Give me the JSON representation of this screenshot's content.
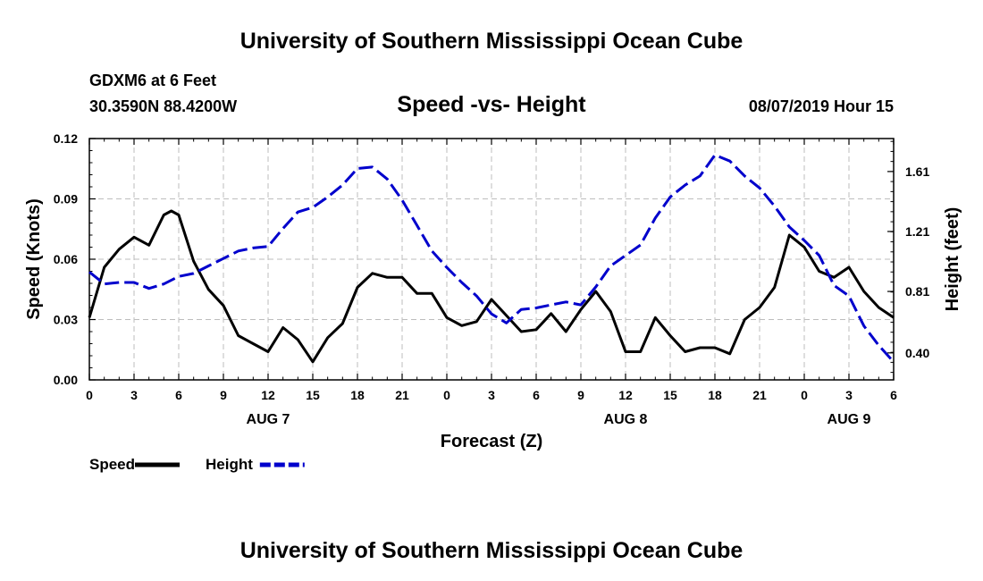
{
  "header": {
    "title_top": "University of Southern Mississippi Ocean Cube",
    "title_bottom": "University of Southern Mississippi Ocean Cube",
    "station": "GDXM6 at 6 Feet",
    "coords": "30.3590N 88.4200W",
    "datetime": "08/07/2019 Hour 15"
  },
  "colors": {
    "speed": "#000000",
    "height": "#0000cc",
    "grid": "#bdbdbd"
  },
  "chart_data": {
    "type": "line",
    "title": "Speed -vs- Height",
    "xlabel": "Forecast (Z)",
    "ylabel": "Speed (Knots)",
    "y2label": "Height (feet)",
    "xlim": [
      0,
      54
    ],
    "ylim": [
      0,
      0.12
    ],
    "y2lim": [
      0.22,
      1.83
    ],
    "x_ticks": [
      0,
      3,
      6,
      9,
      12,
      15,
      18,
      21,
      24,
      27,
      30,
      33,
      36,
      39,
      42,
      45,
      48,
      51,
      54
    ],
    "x_tick_labels": [
      "0",
      "3",
      "6",
      "9",
      "12",
      "15",
      "18",
      "21",
      "0",
      "3",
      "6",
      "9",
      "12",
      "15",
      "18",
      "21",
      "0",
      "3",
      "6"
    ],
    "y_tick_labels": [
      "0.00",
      "0.03",
      "0.06",
      "0.09",
      "0.12"
    ],
    "y_ticks": [
      0,
      0.03,
      0.06,
      0.09,
      0.12
    ],
    "y2_tick_labels": [
      "0.40",
      "0.81",
      "1.21",
      "1.61"
    ],
    "y2_ticks": [
      0.4,
      0.81,
      1.21,
      1.61
    ],
    "date_labels": [
      {
        "x": 12,
        "text": "AUG 7"
      },
      {
        "x": 36,
        "text": "AUG 8"
      },
      {
        "x": 51,
        "text": "AUG 9"
      }
    ],
    "series": [
      {
        "name": "Speed",
        "axis": "left",
        "x": [
          0,
          1,
          2,
          3,
          4,
          5,
          5.5,
          6,
          7,
          8,
          9,
          10,
          11,
          12,
          13,
          14,
          15,
          16,
          17,
          18,
          19,
          20,
          21,
          22,
          23,
          24,
          25,
          26,
          27,
          28,
          29,
          30,
          31,
          32,
          33,
          34,
          35,
          36,
          37,
          38,
          39,
          40,
          41,
          42,
          43,
          44,
          45,
          46,
          47,
          48,
          49,
          50,
          51,
          52,
          53,
          54
        ],
        "values": [
          0.031,
          0.056,
          0.065,
          0.071,
          0.067,
          0.082,
          0.084,
          0.082,
          0.059,
          0.045,
          0.037,
          0.022,
          0.018,
          0.014,
          0.026,
          0.02,
          0.009,
          0.021,
          0.028,
          0.046,
          0.053,
          0.051,
          0.051,
          0.043,
          0.043,
          0.031,
          0.027,
          0.029,
          0.04,
          0.032,
          0.024,
          0.025,
          0.033,
          0.024,
          0.035,
          0.044,
          0.034,
          0.014,
          0.014,
          0.031,
          0.022,
          0.014,
          0.016,
          0.016,
          0.013,
          0.03,
          0.036,
          0.046,
          0.072,
          0.066,
          0.054,
          0.051,
          0.056,
          0.044,
          0.036,
          0.031
        ]
      },
      {
        "name": "Height",
        "axis": "right",
        "x": [
          0,
          1,
          2,
          3,
          4,
          5,
          6,
          7,
          8,
          9,
          10,
          11,
          12,
          13,
          14,
          15,
          16,
          17,
          18,
          19,
          20,
          21,
          22,
          23,
          24,
          25,
          26,
          27,
          28,
          29,
          30,
          31,
          32,
          33,
          34,
          35,
          36,
          37,
          38,
          39,
          40,
          41,
          42,
          43,
          44,
          45,
          46,
          47,
          48,
          49,
          50,
          51,
          52,
          53,
          54
        ],
        "values": [
          0.94,
          0.86,
          0.87,
          0.87,
          0.83,
          0.86,
          0.91,
          0.93,
          0.98,
          1.03,
          1.08,
          1.1,
          1.11,
          1.23,
          1.34,
          1.37,
          1.44,
          1.52,
          1.63,
          1.64,
          1.56,
          1.42,
          1.25,
          1.08,
          0.97,
          0.87,
          0.78,
          0.66,
          0.6,
          0.69,
          0.7,
          0.72,
          0.74,
          0.72,
          0.84,
          0.98,
          1.05,
          1.12,
          1.3,
          1.44,
          1.52,
          1.58,
          1.72,
          1.68,
          1.58,
          1.5,
          1.38,
          1.24,
          1.15,
          1.05,
          0.85,
          0.78,
          0.58,
          0.45,
          0.34
        ]
      }
    ],
    "legend": [
      {
        "name": "Speed",
        "style": "solid"
      },
      {
        "name": "Height",
        "style": "dashed"
      }
    ]
  }
}
